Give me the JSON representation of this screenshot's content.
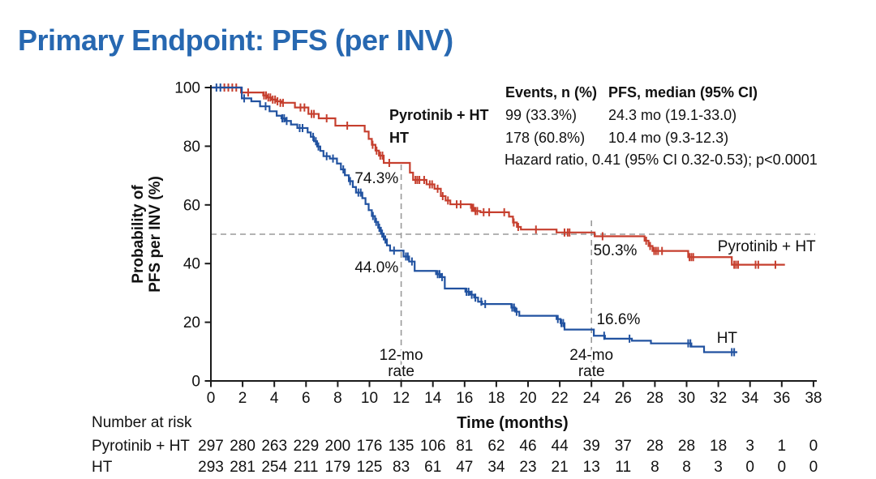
{
  "slide": {
    "title": "Primary Endpoint: PFS (per INV)",
    "title_color": "#2768b1",
    "background": "#ffffff"
  },
  "stats": {
    "header_events": "Events, n (%)",
    "header_pfs": "PFS, median (95% CI)",
    "rows": [
      {
        "label": "Pyrotinib + HT",
        "events": "99 (33.3%)",
        "pfs": "24.3 mo (19.1-33.0)"
      },
      {
        "label": "HT",
        "events": "178 (60.8%)",
        "pfs": "10.4 mo (9.3-12.3)"
      }
    ],
    "hazard": "Hazard ratio, 0.41 (95% CI 0.32-0.53); p<0.0001"
  },
  "chart_data": {
    "type": "line",
    "subtype": "kaplan-meier-step",
    "xlabel": "Time (months)",
    "ylabel_lines": [
      "Probability of",
      "PFS per INV (%)"
    ],
    "xlim": [
      0,
      38
    ],
    "ylim": [
      0,
      100
    ],
    "xticks": [
      0,
      2,
      4,
      6,
      8,
      10,
      12,
      14,
      16,
      18,
      20,
      22,
      24,
      26,
      28,
      30,
      32,
      34,
      36,
      38
    ],
    "yticks": [
      0,
      20,
      40,
      60,
      80,
      100
    ],
    "grid": false,
    "axis_color": "#1a1a1a",
    "reference_lines": [
      {
        "axis": "y",
        "value": 50
      },
      {
        "axis": "x",
        "value": 12
      },
      {
        "axis": "x",
        "value": 24
      }
    ],
    "series": [
      {
        "id": "pyrotinib-ht",
        "name": "Pyrotinib + HT",
        "color": "#c63f2e",
        "rate_12mo": "74.3%",
        "rate_24mo": "50.3%",
        "end": 36.2,
        "points": [
          [
            0,
            100
          ],
          [
            1.9,
            98.3
          ],
          [
            3.3,
            97.3
          ],
          [
            3.55,
            96.6
          ],
          [
            3.8,
            95.9
          ],
          [
            4.1,
            95.3
          ],
          [
            4.45,
            94.8
          ],
          [
            5.3,
            93.2
          ],
          [
            6.15,
            91
          ],
          [
            6.8,
            89.5
          ],
          [
            7.85,
            87
          ],
          [
            9.7,
            85
          ],
          [
            9.95,
            82.5
          ],
          [
            10.15,
            80.5
          ],
          [
            10.38,
            78.5
          ],
          [
            10.6,
            76.8
          ],
          [
            10.9,
            74.3
          ],
          [
            12.55,
            71
          ],
          [
            12.75,
            68.5
          ],
          [
            13.6,
            67
          ],
          [
            14.1,
            65.5
          ],
          [
            14.5,
            63
          ],
          [
            14.8,
            61.5
          ],
          [
            15.1,
            60.2
          ],
          [
            16.4,
            59
          ],
          [
            16.6,
            57.9
          ],
          [
            17.0,
            57.5
          ],
          [
            18.8,
            56
          ],
          [
            19.05,
            54
          ],
          [
            19.3,
            52.5
          ],
          [
            19.55,
            51.6
          ],
          [
            21.8,
            50.6
          ],
          [
            24.2,
            49.3
          ],
          [
            27.35,
            47.8
          ],
          [
            27.6,
            46
          ],
          [
            27.85,
            44.3
          ],
          [
            30.1,
            42.2
          ],
          [
            32.85,
            39.6
          ]
        ],
        "censors": [
          [
            0.85,
            100
          ],
          [
            1.1,
            100
          ],
          [
            1.35,
            100
          ],
          [
            1.6,
            100
          ],
          [
            2.35,
            98.3
          ],
          [
            3.35,
            97.3
          ],
          [
            3.48,
            97.3
          ],
          [
            3.62,
            96.6
          ],
          [
            3.75,
            96.6
          ],
          [
            3.9,
            95.9
          ],
          [
            4.05,
            95.9
          ],
          [
            4.2,
            95.3
          ],
          [
            4.38,
            94.8
          ],
          [
            4.55,
            94.8
          ],
          [
            5.65,
            93.2
          ],
          [
            5.9,
            93.2
          ],
          [
            6.35,
            91
          ],
          [
            6.5,
            91
          ],
          [
            7.3,
            89.5
          ],
          [
            8.6,
            87
          ],
          [
            10.2,
            80.5
          ],
          [
            10.45,
            78.5
          ],
          [
            10.68,
            76.8
          ],
          [
            10.82,
            76.8
          ],
          [
            11.25,
            74.3
          ],
          [
            12.9,
            68.5
          ],
          [
            13.02,
            68.5
          ],
          [
            13.15,
            68.5
          ],
          [
            13.45,
            68.5
          ],
          [
            13.8,
            67
          ],
          [
            13.95,
            67
          ],
          [
            14.3,
            65.5
          ],
          [
            14.62,
            63
          ],
          [
            14.95,
            61.5
          ],
          [
            15.5,
            60.2
          ],
          [
            15.75,
            60.2
          ],
          [
            16.45,
            59
          ],
          [
            16.55,
            59
          ],
          [
            16.68,
            57.9
          ],
          [
            16.8,
            57.9
          ],
          [
            17.2,
            57.5
          ],
          [
            17.55,
            57.5
          ],
          [
            18.5,
            57.5
          ],
          [
            19.1,
            54
          ],
          [
            19.38,
            52.5
          ],
          [
            20.5,
            51.6
          ],
          [
            22.3,
            50.6
          ],
          [
            22.5,
            50.6
          ],
          [
            22.62,
            50.6
          ],
          [
            24.7,
            49.3
          ],
          [
            27.45,
            47.8
          ],
          [
            27.7,
            46
          ],
          [
            27.95,
            44.3
          ],
          [
            28.07,
            44.3
          ],
          [
            28.2,
            44.3
          ],
          [
            28.45,
            44.3
          ],
          [
            30.18,
            42.2
          ],
          [
            30.3,
            42.2
          ],
          [
            30.42,
            42.2
          ],
          [
            33.0,
            39.6
          ],
          [
            33.12,
            39.6
          ],
          [
            33.25,
            39.6
          ],
          [
            34.35,
            39.6
          ],
          [
            34.52,
            39.6
          ],
          [
            35.6,
            39.6
          ]
        ]
      },
      {
        "id": "ht",
        "name": "HT",
        "color": "#2152a0",
        "rate_12mo": "44.0%",
        "rate_24mo": "16.6%",
        "end": 33.2,
        "points": [
          [
            0,
            100
          ],
          [
            1.95,
            96.3
          ],
          [
            2.55,
            95.3
          ],
          [
            3.1,
            93.6
          ],
          [
            3.7,
            91.9
          ],
          [
            4.15,
            90.4
          ],
          [
            4.45,
            89.5
          ],
          [
            4.7,
            88.6
          ],
          [
            5.05,
            87.4
          ],
          [
            5.45,
            86.2
          ],
          [
            6.1,
            84.7
          ],
          [
            6.3,
            83.2
          ],
          [
            6.5,
            81.7
          ],
          [
            6.7,
            79.9
          ],
          [
            6.9,
            78.4
          ],
          [
            7.1,
            76.6
          ],
          [
            7.5,
            75.8
          ],
          [
            7.95,
            74.1
          ],
          [
            8.2,
            72.1
          ],
          [
            8.45,
            70.1
          ],
          [
            8.7,
            68.1
          ],
          [
            8.95,
            66.1
          ],
          [
            9.15,
            64.2
          ],
          [
            9.55,
            62.3
          ],
          [
            9.75,
            60.3
          ],
          [
            9.95,
            58.2
          ],
          [
            10.15,
            56.2
          ],
          [
            10.35,
            54.2
          ],
          [
            10.55,
            52.2
          ],
          [
            10.72,
            50.2
          ],
          [
            10.9,
            48.2
          ],
          [
            11.1,
            46.2
          ],
          [
            11.3,
            44.4
          ],
          [
            12.15,
            42.4
          ],
          [
            12.5,
            40.7
          ],
          [
            12.85,
            37.5
          ],
          [
            14.2,
            36.4
          ],
          [
            14.5,
            35.4
          ],
          [
            14.75,
            31.5
          ],
          [
            16.05,
            30.4
          ],
          [
            16.35,
            29.4
          ],
          [
            16.6,
            28.4
          ],
          [
            16.85,
            27.0
          ],
          [
            17.1,
            26.2
          ],
          [
            18.95,
            25.0
          ],
          [
            19.2,
            23.6
          ],
          [
            19.45,
            22.2
          ],
          [
            21.8,
            21.1
          ],
          [
            22.05,
            19.7
          ],
          [
            22.3,
            17.5
          ],
          [
            24.15,
            15.4
          ],
          [
            24.85,
            14.4
          ],
          [
            26.55,
            13.7
          ],
          [
            27.75,
            12.8
          ],
          [
            30.3,
            11.7
          ],
          [
            31.1,
            9.8
          ]
        ],
        "censors": [
          [
            0.35,
            100
          ],
          [
            0.6,
            100
          ],
          [
            2.1,
            96.3
          ],
          [
            3.45,
            93.6
          ],
          [
            4.5,
            89.5
          ],
          [
            4.62,
            89.5
          ],
          [
            4.78,
            88.6
          ],
          [
            5.6,
            86.2
          ],
          [
            5.78,
            86.2
          ],
          [
            6.45,
            83.2
          ],
          [
            6.62,
            81.7
          ],
          [
            6.78,
            79.9
          ],
          [
            7.3,
            76.6
          ],
          [
            7.7,
            75.8
          ],
          [
            8.35,
            72.1
          ],
          [
            8.78,
            68.1
          ],
          [
            9.3,
            64.2
          ],
          [
            9.45,
            64.2
          ],
          [
            10.22,
            56.2
          ],
          [
            10.42,
            54.2
          ],
          [
            10.62,
            52.2
          ],
          [
            10.8,
            50.2
          ],
          [
            11.0,
            48.2
          ],
          [
            11.55,
            44.4
          ],
          [
            12.3,
            42.4
          ],
          [
            12.42,
            42.4
          ],
          [
            12.68,
            40.7
          ],
          [
            14.3,
            36.4
          ],
          [
            14.42,
            36.4
          ],
          [
            14.58,
            35.4
          ],
          [
            16.12,
            30.4
          ],
          [
            16.25,
            30.4
          ],
          [
            16.45,
            29.4
          ],
          [
            16.68,
            28.4
          ],
          [
            17.05,
            27.0
          ],
          [
            17.3,
            26.2
          ],
          [
            19.0,
            25.0
          ],
          [
            19.12,
            25.0
          ],
          [
            19.28,
            23.6
          ],
          [
            21.88,
            21.1
          ],
          [
            22.1,
            19.7
          ],
          [
            22.22,
            19.7
          ],
          [
            24.8,
            15.4
          ],
          [
            26.4,
            14.4
          ],
          [
            30.1,
            12.8
          ],
          [
            30.24,
            12.8
          ],
          [
            32.85,
            9.8
          ],
          [
            33.0,
            9.8
          ]
        ]
      }
    ],
    "annotations": [
      {
        "text": "74.3%",
        "t": 10.45,
        "v": 67.4,
        "color": "#c63f2e"
      },
      {
        "text": "44.0%",
        "t": 10.45,
        "v": 37.0,
        "color": "#2152a0"
      },
      {
        "text": "50.3%",
        "t": 25.5,
        "v": 42.8,
        "color": "#c63f2e"
      },
      {
        "text": "16.6%",
        "t": 25.7,
        "v": 19.3,
        "color": "#2152a0"
      },
      {
        "text": "Pyrotinib + HT",
        "t": 35.05,
        "v": 44.2,
        "color": "#c63f2e"
      },
      {
        "text": "HT",
        "t": 32.55,
        "v": 13.0,
        "color": "#2152a0"
      }
    ],
    "rate_labels": [
      {
        "line1": "12-mo",
        "line2": "rate",
        "t": 12
      },
      {
        "line1": "24-mo",
        "line2": "rate",
        "t": 24
      }
    ],
    "number_at_risk": {
      "title": "Number at risk",
      "rows": [
        {
          "label": "Pyrotinib + HT",
          "values": [
            297,
            280,
            263,
            229,
            200,
            176,
            135,
            106,
            81,
            62,
            46,
            44,
            39,
            37,
            28,
            28,
            18,
            3,
            1,
            0
          ]
        },
        {
          "label": "HT",
          "values": [
            293,
            281,
            254,
            211,
            179,
            125,
            83,
            61,
            47,
            34,
            23,
            21,
            13,
            11,
            8,
            8,
            3,
            0,
            0,
            0
          ]
        }
      ]
    }
  }
}
